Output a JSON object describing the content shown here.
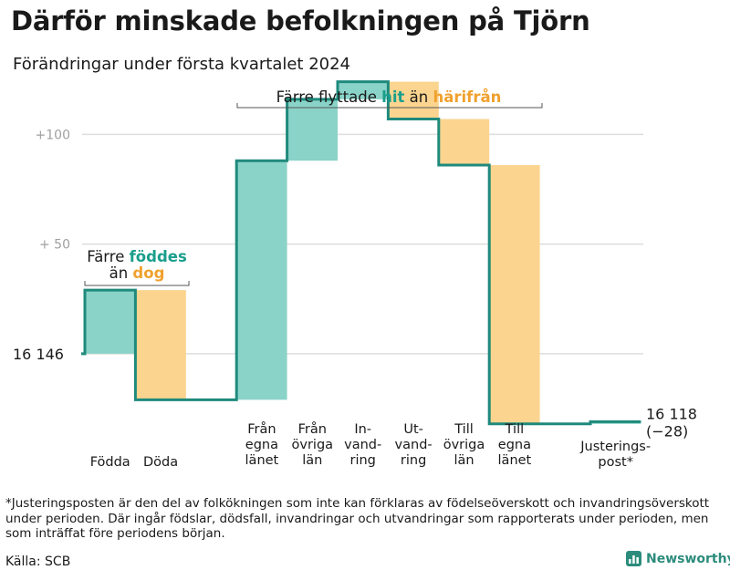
{
  "title": "Därför minskade befolkningen på Tjörn",
  "subtitle": "Förändringar under första kvartalet 2024",
  "footnote": "*Justeringsposten är den del av folkökningen som inte kan förklaras av födelseöverskott och invandringsöverskott under perioden. Där ingår födslar, dödsfall, invandringar och utvandringar som rapporterats under perioden, men som inträffat före periodens början.",
  "source": "Källa: SCB",
  "brand": "Newsworthy",
  "colors": {
    "increase": "#8ad3c8",
    "decrease": "#fbd48f",
    "line": "#1f8a7c",
    "teal_text": "#1a9e8c",
    "orange_text": "#f0a12e",
    "grid": "#dddddd",
    "tick": "#a0a0a0"
  },
  "chart_data": {
    "type": "waterfall",
    "start_value": 16146,
    "end_value": 16118,
    "start_label": "16  146",
    "end_label_value": "16 118",
    "end_label_change": "(−28)",
    "y_ticks": [
      {
        "value": 100,
        "label": "+100"
      },
      {
        "value": 50,
        "label": "+  50"
      }
    ],
    "ylim": [
      -30,
      128
    ],
    "steps": [
      {
        "label": [
          "Födda"
        ],
        "change": 29
      },
      {
        "label": [
          "Döda"
        ],
        "change": -50
      },
      {
        "label": [],
        "change": 0
      },
      {
        "label": [
          "Från",
          "egna",
          "länet"
        ],
        "change": 109
      },
      {
        "label": [
          "Från",
          "övriga",
          "län"
        ],
        "change": 28
      },
      {
        "label": [
          "In-",
          "vand-",
          "ring"
        ],
        "change": 8
      },
      {
        "label": [
          "Ut-",
          "vand-",
          "ring"
        ],
        "change": -17
      },
      {
        "label": [
          "Till",
          "övriga",
          "län"
        ],
        "change": -21
      },
      {
        "label": [
          "Till",
          "egna",
          "länet"
        ],
        "change": -118
      },
      {
        "label": [],
        "change": 0
      },
      {
        "label": [
          "Justerings-",
          "post*"
        ],
        "change": 1
      }
    ],
    "annotations": {
      "births": {
        "prefix": "Färre ",
        "teal": "föddes",
        "line2_prefix": "än ",
        "orange": "dog"
      },
      "moves": {
        "prefix": "Färre flyttade ",
        "teal": "hit",
        "middle": " än ",
        "orange": "härifrån"
      }
    }
  }
}
